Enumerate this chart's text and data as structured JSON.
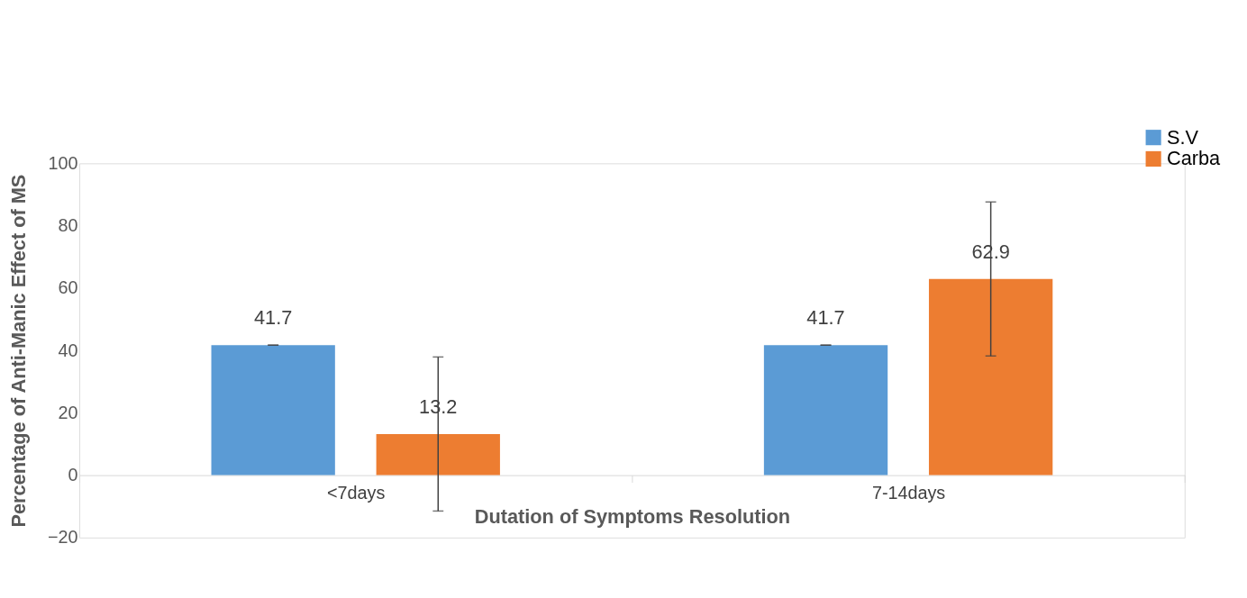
{
  "chart_data": {
    "type": "bar",
    "xlabel": "Dutation of Symptoms Resolution",
    "ylabel": "Percentage of Anti-Manic Effect of MS",
    "categories": [
      "<7days",
      "7-14days"
    ],
    "series": [
      {
        "name": "S.V",
        "color": "#5b9bd5",
        "values": [
          41.7,
          41.7
        ],
        "errors": [
          0,
          0
        ]
      },
      {
        "name": "Carba",
        "color": "#ed7d31",
        "values": [
          13.2,
          62.9
        ],
        "errors": [
          24.7,
          24.7
        ]
      }
    ],
    "ylim": [
      -20,
      100
    ],
    "yticks": [
      -20,
      0,
      20,
      40,
      60,
      80,
      100
    ],
    "data_labels": true,
    "grid": false,
    "legend": "top right"
  }
}
